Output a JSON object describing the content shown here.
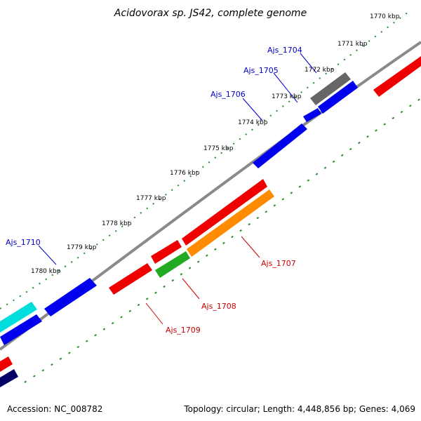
{
  "title": "Acidovorax sp. JS42, complete genome",
  "footer": {
    "accession": "Accession: NC_008782",
    "summary": "Topology: circular; Length: 4,448,856 bp; Genes: 4,069"
  },
  "ticks": [
    "1770 kbp",
    "1771 kbp",
    "1772 kbp",
    "1773 kbp",
    "1774 kbp",
    "1775 kbp",
    "1776 kbp",
    "1777 kbp",
    "1778 kbp",
    "1779 kbp",
    "1780 kbp"
  ],
  "genes_forward": [
    "Ajs_1704",
    "Ajs_1705",
    "Ajs_1706",
    "Ajs_1710"
  ],
  "genes_reverse": [
    "Ajs_1707",
    "Ajs_1708",
    "Ajs_1709"
  ],
  "colors": {
    "forward_label": "#0000cc",
    "reverse_label": "#cc0000",
    "backbone": "#8a8a8a",
    "tick": "#2a8a2a",
    "blue": "#0000ee",
    "red": "#ee0000",
    "gray": "#666666",
    "orange": "#ff8c00",
    "green": "#22aa22",
    "cyan": "#00dddd",
    "navy": "#000066"
  }
}
